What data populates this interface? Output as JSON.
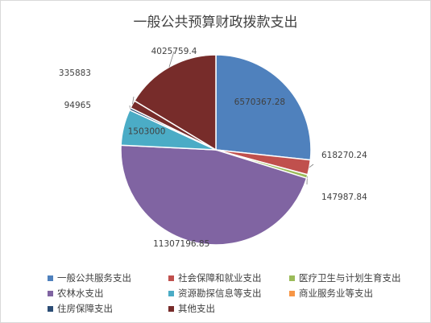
{
  "chart_data": {
    "type": "pie",
    "title": "一般公共预算财政拨款支出",
    "slices": [
      {
        "label": "一般公共服务支出",
        "value": 6570367.28,
        "value_label": "6570367.28",
        "color": "#4f81bd"
      },
      {
        "label": "社会保障和就业支出",
        "value": 618270.24,
        "value_label": "618270.24",
        "color": "#c0504d"
      },
      {
        "label": "医疗卫生与计划生育支出",
        "value": 147987.84,
        "value_label": "147987.84",
        "color": "#9bbb59"
      },
      {
        "label": "农林水支出",
        "value": 11307196.85,
        "value_label": "11307196.85",
        "color": "#8064a2"
      },
      {
        "label": "资源勘探信息等支出",
        "value": 1503000,
        "value_label": "1503000",
        "color": "#4bacc6"
      },
      {
        "label": "商业服务业等支出",
        "value": 0,
        "value_label": "",
        "color": "#f79646"
      },
      {
        "label": "住房保障支出",
        "value": 94965,
        "value_label": "94965",
        "color": "#2c4d75"
      },
      {
        "label": "其他支出",
        "value": 335883,
        "value_label": "335883",
        "color": "#772c2a"
      },
      {
        "label": "",
        "value": 4025759.4,
        "value_label": "4025759.4",
        "color": "#772c2a"
      }
    ],
    "legend_position": "bottom"
  }
}
